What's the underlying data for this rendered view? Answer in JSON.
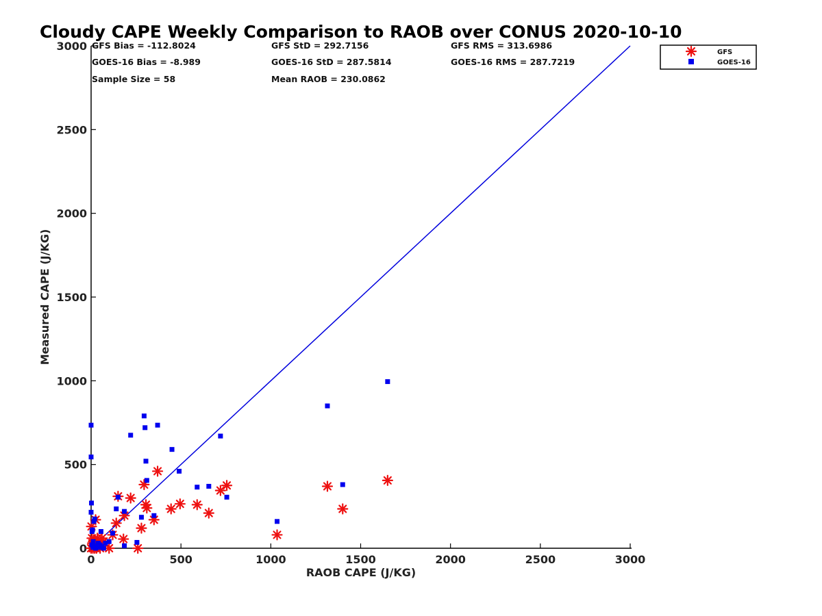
{
  "chart_data": {
    "type": "scatter",
    "title": "Cloudy CAPE Weekly Comparison to RAOB over CONUS 2020-10-10",
    "xlabel": "RAOB CAPE (J/KG)",
    "ylabel": "Measured CAPE (J/KG)",
    "xlim": [
      0,
      3000
    ],
    "ylim": [
      0,
      3000
    ],
    "x_ticks": [
      "0",
      "500",
      "1000",
      "1500",
      "2000",
      "2500",
      "3000"
    ],
    "y_ticks": [
      "0",
      "500",
      "1000",
      "1500",
      "2000",
      "2500",
      "3000"
    ],
    "grid": false,
    "legend_position": "top-right",
    "stats": [
      "GFS Bias = -112.8024",
      "GFS StD = 292.7156",
      "GFS RMS = 313.6986",
      "GOES-16 Bias = -8.989",
      "GOES-16 StD = 287.5814",
      "GOES-16 RMS = 287.7219",
      "Sample Size = 58",
      "Mean RAOB = 230.0862"
    ],
    "reference_line": {
      "x": [
        0,
        3000
      ],
      "y": [
        0,
        3000
      ],
      "color": "#0000dd"
    },
    "series": [
      {
        "name": "GFS",
        "marker": "asterisk",
        "color": "#ee1111",
        "x": [
          0,
          2,
          5,
          8,
          10,
          12,
          15,
          18,
          20,
          22,
          25,
          28,
          30,
          35,
          40,
          45,
          50,
          55,
          60,
          70,
          80,
          100,
          120,
          140,
          150,
          180,
          185,
          220,
          260,
          280,
          295,
          305,
          310,
          350,
          370,
          445,
          495,
          590,
          655,
          720,
          755,
          1035,
          1315,
          1400,
          1650
        ],
        "y": [
          0,
          130,
          60,
          30,
          0,
          15,
          50,
          10,
          0,
          45,
          170,
          20,
          0,
          60,
          10,
          30,
          0,
          20,
          60,
          40,
          30,
          0,
          80,
          150,
          310,
          55,
          195,
          300,
          0,
          120,
          380,
          260,
          240,
          170,
          460,
          235,
          265,
          260,
          210,
          345,
          375,
          80,
          370,
          235,
          405
        ]
      },
      {
        "name": "GOES-16",
        "marker": "square",
        "color": "#0000ee",
        "x": [
          0,
          0,
          0,
          2,
          4,
          5,
          8,
          10,
          12,
          15,
          20,
          25,
          30,
          35,
          40,
          45,
          50,
          55,
          60,
          70,
          80,
          100,
          120,
          140,
          150,
          185,
          185,
          220,
          255,
          280,
          295,
          300,
          305,
          310,
          350,
          370,
          450,
          490,
          590,
          655,
          720,
          755,
          1035,
          1315,
          1400,
          1650
        ],
        "y": [
          735,
          545,
          215,
          270,
          20,
          100,
          110,
          5,
          40,
          160,
          175,
          0,
          15,
          10,
          30,
          5,
          20,
          100,
          10,
          0,
          30,
          40,
          90,
          235,
          305,
          15,
          220,
          675,
          35,
          185,
          790,
          720,
          520,
          405,
          195,
          735,
          590,
          460,
          365,
          370,
          670,
          305,
          160,
          850,
          380,
          995
        ]
      }
    ]
  }
}
